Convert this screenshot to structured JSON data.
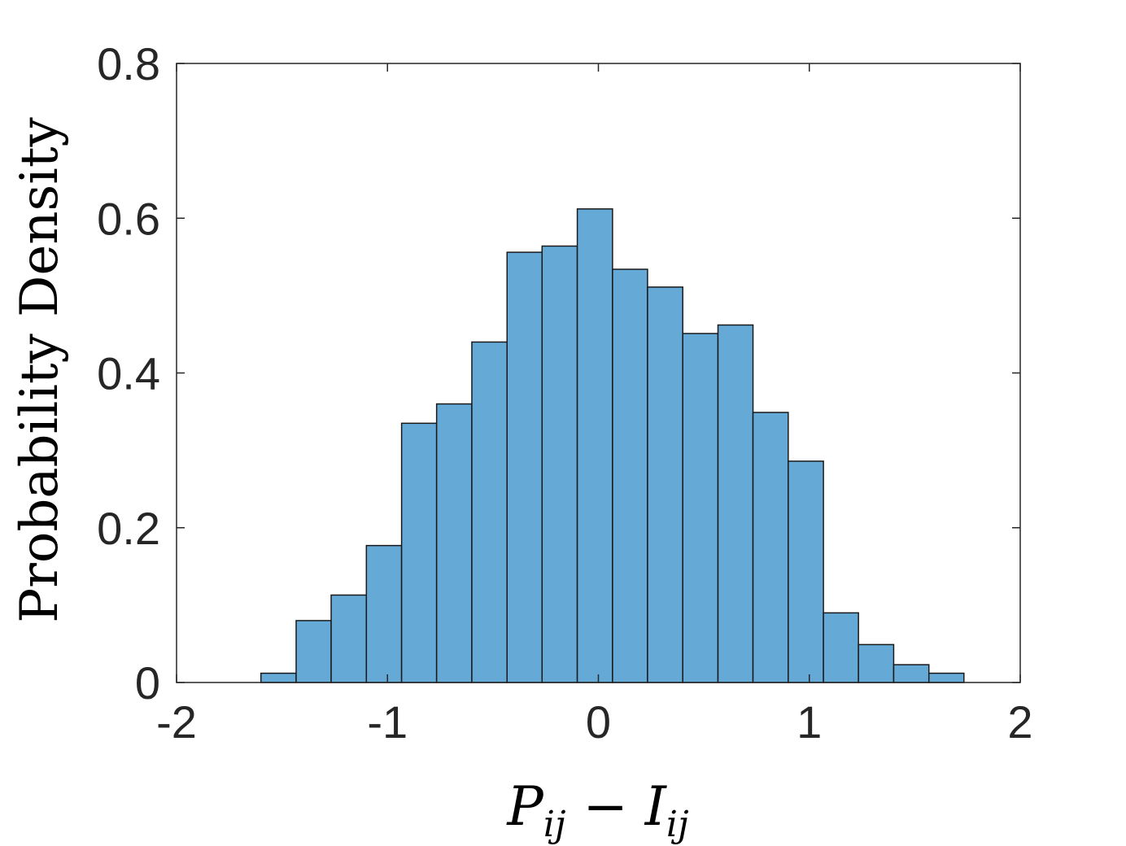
{
  "chart_data": {
    "type": "bar",
    "subtype": "histogram",
    "xlabel": "P_ij − I_ij",
    "xlabel_parts": {
      "a": "P",
      "a_sub": "ij",
      "op": " − ",
      "b": "I",
      "b_sub": "ij"
    },
    "ylabel": "Probability Density",
    "xlim": [
      -2,
      2
    ],
    "ylim": [
      0,
      0.8
    ],
    "x_ticks": [
      -2,
      -1,
      0,
      1,
      2
    ],
    "x_tick_labels": [
      "-2",
      "-1",
      "0",
      "1",
      "2"
    ],
    "y_ticks": [
      0,
      0.2,
      0.4,
      0.6,
      0.8
    ],
    "y_tick_labels": [
      "0",
      "0.2",
      "0.4",
      "0.6",
      "0.8"
    ],
    "grid": false,
    "bar_color": "#65a9d7",
    "edge_color": "#1a1a1a",
    "bin_edges": [
      -1.6,
      -1.433,
      -1.267,
      -1.1,
      -0.933,
      -0.767,
      -0.6,
      -0.433,
      -0.267,
      -0.1,
      0.067,
      0.233,
      0.4,
      0.567,
      0.733,
      0.9,
      1.067,
      1.233,
      1.4,
      1.567,
      1.733
    ],
    "values": [
      0.012,
      0.08,
      0.113,
      0.177,
      0.335,
      0.36,
      0.44,
      0.556,
      0.564,
      0.612,
      0.534,
      0.511,
      0.451,
      0.462,
      0.349,
      0.286,
      0.09,
      0.049,
      0.023,
      0.012
    ]
  }
}
